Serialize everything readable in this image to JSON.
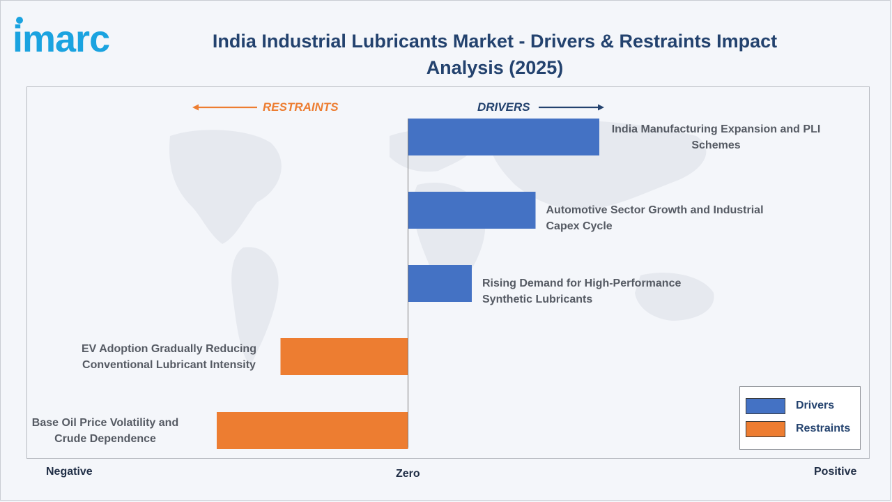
{
  "header": {
    "logo_text": "imarc",
    "title": "India Industrial Lubricants Market - Drivers & Restraints Impact Analysis (2025)"
  },
  "colors": {
    "drivers": "#4472c4",
    "restraints": "#ed7d31",
    "title": "#23426e",
    "logo": "#1aa3e0"
  },
  "direction_labels": {
    "restraints": "RESTRAINTS",
    "drivers": "DRIVERS"
  },
  "axis_labels": {
    "negative": "Negative",
    "zero": "Zero",
    "positive": "Positive"
  },
  "chart_data": {
    "type": "bar",
    "orientation": "horizontal",
    "title": "India Industrial Lubricants Market - Drivers & Restraints Impact Analysis (2025)",
    "categories": [
      "India Manufacturing Expansion and PLI Schemes",
      "Automotive Sector Growth and Industrial Capex Cycle",
      "Rising Demand for High-Performance Synthetic Lubricants",
      "EV Adoption Gradually Reducing Conventional Lubricant Intensity",
      "Base Oil Price Volatility and Crude Dependence"
    ],
    "label_lines": [
      [
        "India Manufacturing Expansion and PLI",
        "Schemes"
      ],
      [
        "Automotive Sector Growth and Industrial Capex Cycle"
      ],
      [
        "Rising Demand for High-Performance Synthetic Lubricants"
      ],
      [
        "EV Adoption Gradually Reducing",
        "Conventional Lubricant Intensity"
      ],
      [
        "Base Oil Price Volatility and",
        "Crude Dependence"
      ]
    ],
    "values": [
      3.0,
      2.0,
      1.0,
      -2.0,
      -3.0
    ],
    "series_type": [
      "Drivers",
      "Drivers",
      "Drivers",
      "Restraints",
      "Restraints"
    ],
    "legend": {
      "position": "bottom-right",
      "entries": [
        "Drivers",
        "Restraints"
      ]
    },
    "xlim": [
      -6,
      6.8
    ],
    "grid": false
  }
}
